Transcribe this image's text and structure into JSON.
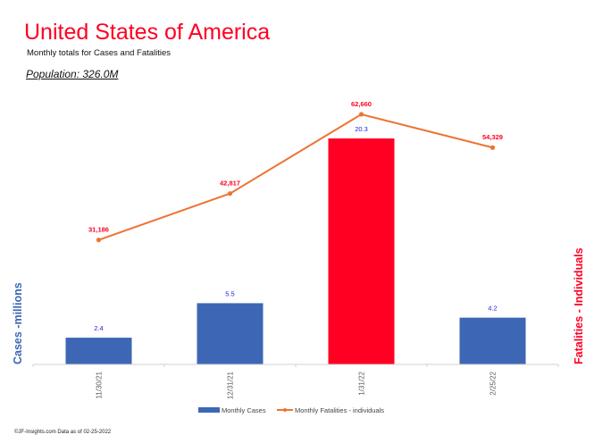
{
  "header": {
    "title": "United States of America",
    "subtitle": "Monthly totals for Cases and Fatalities",
    "population": "Population: 326.0M"
  },
  "footer": {
    "text": "©JF-Insights.com  Data as of 02-25-2022"
  },
  "colors": {
    "title": "#ff0022",
    "cases_bar": "#3d67b4",
    "highlight_bar": "#ff0022",
    "fatalities_line": "#ed7433",
    "cases_label": "#2222dd",
    "fatalities_label": "#ff0022",
    "left_axis_label": "#3d67b4",
    "right_axis_label": "#ff0022"
  },
  "chart_data": {
    "type": "bar",
    "title": "United States of America",
    "subtitle": "Monthly totals for Cases and Fatalities",
    "categories": [
      "11/30/21",
      "12/31/21",
      "1/31/22",
      "2/25/22"
    ],
    "series": [
      {
        "name": "Monthly Cases",
        "type": "bar",
        "axis": "left",
        "values": [
          2.4,
          5.5,
          20.3,
          4.2
        ],
        "labels": [
          "2.4",
          "5.5",
          "20.3",
          "4.2"
        ],
        "highlight_index": 2
      },
      {
        "name": "Monthly Fatalities - individuals",
        "type": "line",
        "axis": "right",
        "values": [
          31186,
          42817,
          62660,
          54329
        ],
        "labels": [
          "31,186",
          "42,817",
          "62,660",
          "54,329"
        ]
      }
    ],
    "ylabel": "Cases -millions",
    "y2label": "Fatalities - Individuals",
    "xlabel": "",
    "ylim": [
      0,
      20.3
    ],
    "y2lim": [
      0,
      62660
    ],
    "grid": false,
    "legend": "bottom"
  }
}
